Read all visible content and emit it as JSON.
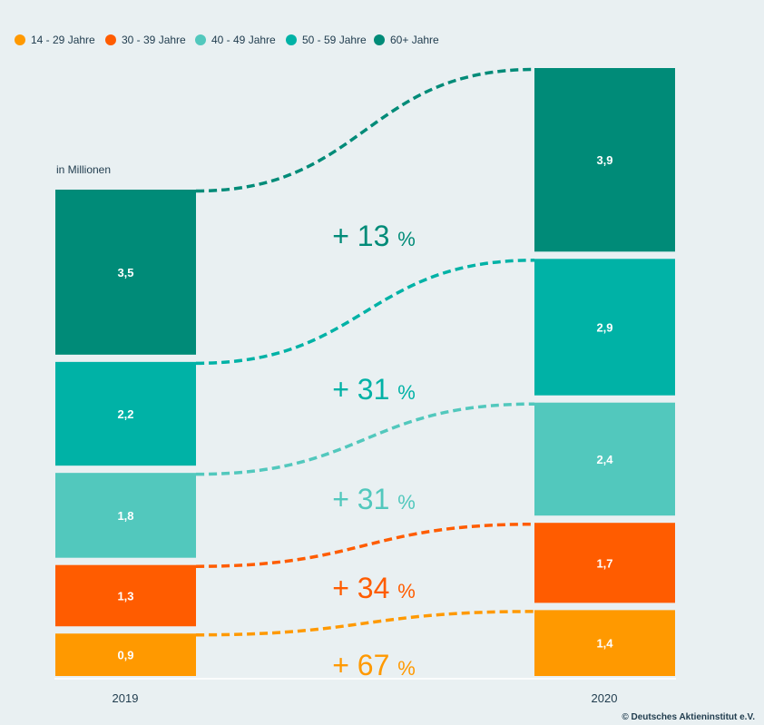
{
  "chart_data": {
    "type": "bar",
    "unit_label": "in Millionen",
    "categories": [
      "2019",
      "2020"
    ],
    "series": [
      {
        "name": "14 - 29 Jahre",
        "color": "#ff9900",
        "values": [
          0.9,
          1.4
        ],
        "labels": [
          "0,9",
          "1,4"
        ],
        "change_label": "+ 67",
        "pct_sign": "%"
      },
      {
        "name": "30 - 39 Jahre",
        "color": "#ff5c00",
        "values": [
          1.3,
          1.7
        ],
        "labels": [
          "1,3",
          "1,7"
        ],
        "change_label": "+ 34",
        "pct_sign": "%"
      },
      {
        "name": "40 - 49 Jahre",
        "color": "#52c8bd",
        "values": [
          1.8,
          2.4
        ],
        "labels": [
          "1,8",
          "2,4"
        ],
        "change_label": "+ 31",
        "pct_sign": "%"
      },
      {
        "name": "50 - 59 Jahre",
        "color": "#00b2a6",
        "values": [
          2.2,
          2.9
        ],
        "labels": [
          "2,2",
          "2,9"
        ],
        "change_label": "+ 31",
        "pct_sign": "%"
      },
      {
        "name": "60+ Jahre",
        "color": "#008b78",
        "values": [
          3.5,
          3.9
        ],
        "labels": [
          "3,5",
          "3,9"
        ],
        "change_label": "+ 13",
        "pct_sign": "%"
      }
    ],
    "legend_position": "top-left",
    "source": "© Deutsches Aktieninstitut e.V."
  }
}
